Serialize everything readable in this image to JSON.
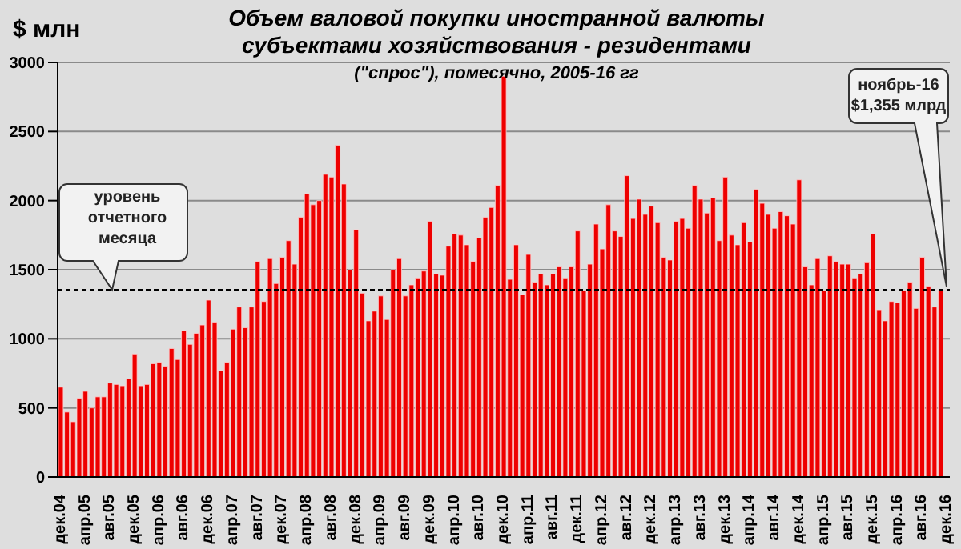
{
  "chart_data": {
    "type": "bar",
    "title": "Объем валовой покупки иностранной валюты субъектами хозяйствования - резидентами",
    "subtitle": "(\"спрос\"), помесячно, 2005-16 гг",
    "ylabel": "$ млн",
    "categories": [
      "дек.04",
      null,
      null,
      null,
      "апр.05",
      null,
      null,
      null,
      "авг.05",
      null,
      null,
      null,
      "дек.05",
      null,
      null,
      null,
      "апр.06",
      null,
      null,
      null,
      "авг.06",
      null,
      null,
      null,
      "дек.06",
      null,
      null,
      null,
      "апр.07",
      null,
      null,
      null,
      "авг.07",
      null,
      null,
      null,
      "дек.07",
      null,
      null,
      null,
      "апр.08",
      null,
      null,
      null,
      "авг.08",
      null,
      null,
      null,
      "дек.08",
      null,
      null,
      null,
      "апр.09",
      null,
      null,
      null,
      "авг.09",
      null,
      null,
      null,
      "дек.09",
      null,
      null,
      null,
      "апр.10",
      null,
      null,
      null,
      "авг.10",
      null,
      null,
      null,
      "дек.10",
      null,
      null,
      null,
      "апр.11",
      null,
      null,
      null,
      "авг.11",
      null,
      null,
      null,
      "дек.11",
      null,
      null,
      null,
      "апр.12",
      null,
      null,
      null,
      "авг.12",
      null,
      null,
      null,
      "дек.12",
      null,
      null,
      null,
      "апр.13",
      null,
      null,
      null,
      "авг.13",
      null,
      null,
      null,
      "дек.13",
      null,
      null,
      null,
      "апр.14",
      null,
      null,
      null,
      "авг.14",
      null,
      null,
      null,
      "дек.14",
      null,
      null,
      null,
      "апр.15",
      null,
      null,
      null,
      "авг.15",
      null,
      null,
      null,
      "дек.15",
      null,
      null,
      null,
      "апр.16",
      null,
      null,
      null,
      "авг.16",
      null,
      null,
      null,
      "дек.16"
    ],
    "values": [
      650,
      470,
      400,
      570,
      620,
      500,
      580,
      580,
      680,
      670,
      660,
      710,
      890,
      660,
      670,
      820,
      830,
      800,
      930,
      850,
      1060,
      960,
      1040,
      1100,
      1280,
      1120,
      770,
      830,
      1070,
      1230,
      1080,
      1230,
      1560,
      1270,
      1580,
      1400,
      1590,
      1710,
      1540,
      1880,
      2050,
      1970,
      2000,
      2190,
      2170,
      2400,
      2120,
      1500,
      1790,
      1330,
      1130,
      1200,
      1310,
      1140,
      1500,
      1580,
      1310,
      1390,
      1440,
      1490,
      1850,
      1470,
      1460,
      1670,
      1760,
      1750,
      1680,
      1560,
      1730,
      1880,
      1950,
      2110,
      2900,
      1430,
      1680,
      1320,
      1610,
      1410,
      1470,
      1390,
      1470,
      1520,
      1440,
      1520,
      1780,
      1350,
      1540,
      1830,
      1650,
      1970,
      1780,
      1740,
      2180,
      1870,
      2010,
      1900,
      1960,
      1840,
      1590,
      1570,
      1850,
      1870,
      1800,
      2110,
      2010,
      1910,
      2020,
      1710,
      2170,
      1750,
      1680,
      1840,
      1700,
      2080,
      1980,
      1900,
      1800,
      1920,
      1890,
      1830,
      2150,
      1520,
      1390,
      1580,
      1350,
      1600,
      1560,
      1540,
      1540,
      1440,
      1470,
      1550,
      1760,
      1210,
      1130,
      1270,
      1260,
      1350,
      1410,
      1220,
      1590,
      1380,
      1230,
      1355,
      null
    ],
    "color": "#ee0000",
    "ylim": [
      0,
      3000
    ],
    "yticks": [
      0,
      500,
      1000,
      1500,
      2000,
      2500,
      3000
    ],
    "grid": "y",
    "ref_lines": [
      {
        "axis": "y",
        "value": 1355,
        "label": "уровень отчетного месяца",
        "line_style": "dashed",
        "color": "#000000"
      }
    ],
    "annotations": [
      "ноябрь-16 $1,355 млрд"
    ]
  }
}
